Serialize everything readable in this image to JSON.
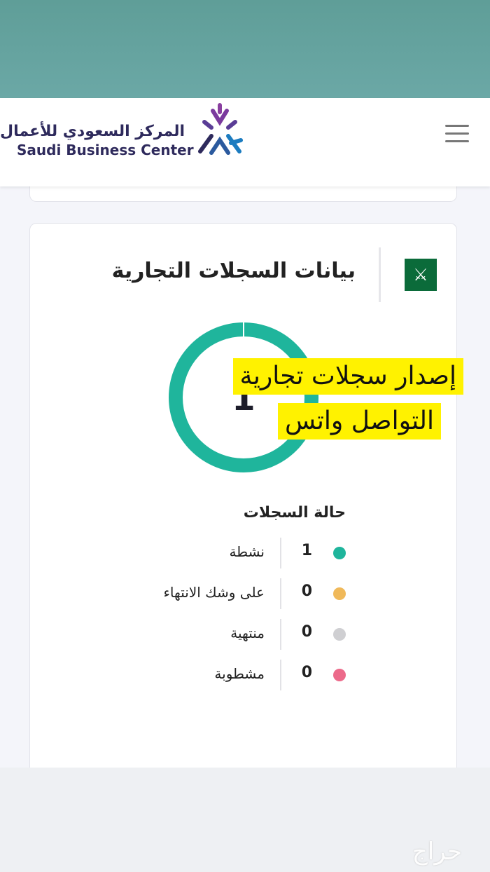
{
  "header": {
    "logo_ar": "المركز السعودي للأعمال",
    "logo_en": "Saudi Business Center",
    "menu_icon": "hamburger-icon"
  },
  "card": {
    "title": "بيانات السجلات التجارية",
    "emblem_icon": "saudi-emblem-icon",
    "donut": {
      "total": "1",
      "active_fraction": 1.0
    },
    "promo_line1": "إصدار سجلات تجارية",
    "promo_line2": "التواصل واتس",
    "status_title": "حالة السجلات",
    "statuses": [
      {
        "label": "نشطة",
        "count": "1",
        "color": "#1fb59c"
      },
      {
        "label": "على وشك الانتهاء",
        "count": "0",
        "color": "#f0b95a"
      },
      {
        "label": "منتهية",
        "count": "0",
        "color": "#cfcfd2"
      },
      {
        "label": "مشطوبة",
        "count": "0",
        "color": "#ec6a8a"
      }
    ]
  },
  "watermark": "حراج"
}
